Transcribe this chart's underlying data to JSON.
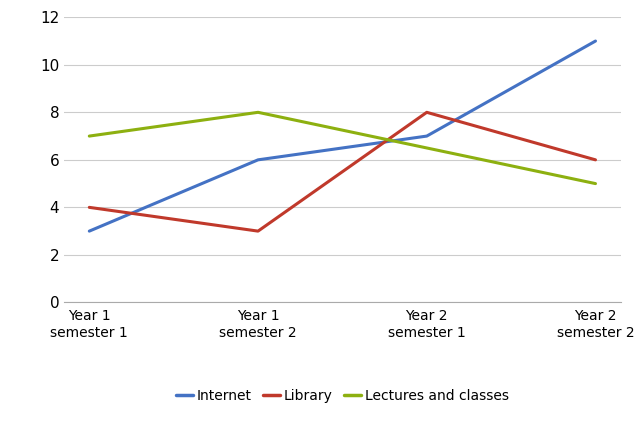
{
  "x_labels": [
    "Year 1\nsemester 1",
    "Year 1\nsemester 2",
    "Year 2\nsemester 1",
    "Year 2\nsemester 2"
  ],
  "series": {
    "Internet": {
      "values": [
        3,
        6,
        7,
        11
      ],
      "color": "#4472C4",
      "linewidth": 2.2
    },
    "Library": {
      "values": [
        4,
        3,
        8,
        6
      ],
      "color": "#C0392B",
      "linewidth": 2.2
    },
    "Lectures and classes": {
      "values": [
        7,
        8,
        6.5,
        5
      ],
      "color": "#8DB010",
      "linewidth": 2.2
    }
  },
  "ylim": [
    0,
    12
  ],
  "yticks": [
    0,
    2,
    4,
    6,
    8,
    10,
    12
  ],
  "background_color": "#FFFFFF",
  "grid_color": "#CCCCCC",
  "title": "",
  "xlabel": "",
  "ylabel": "",
  "tick_fontsize": 11,
  "label_fontsize": 10
}
